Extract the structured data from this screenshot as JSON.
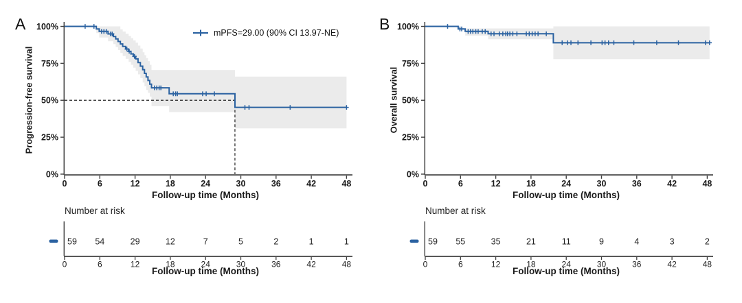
{
  "figure_type": "kaplan-meier-survival-figure",
  "colors": {
    "curve": "#2b62a1",
    "ci_fill": "#ebebeb",
    "axis_line": "#595959",
    "tick_line": "#3f3f3f",
    "text": "#1a1a1a",
    "median_dash": "#222222"
  },
  "chart_data": [
    {
      "type": "line",
      "subtype": "kaplan-meier-step",
      "panel_label": "A",
      "ylabel": "Progression-free survival",
      "xlabel": "Follow-up time (Months)",
      "xlim": [
        0,
        48
      ],
      "xticks": [
        0,
        6,
        12,
        18,
        24,
        30,
        36,
        42,
        48
      ],
      "ylim": [
        0,
        100
      ],
      "yticks": [
        0,
        25,
        50,
        75,
        100
      ],
      "ytick_labels": [
        "0%",
        "25%",
        "50%",
        "75%",
        "100%"
      ],
      "grid": false,
      "legend": {
        "label": "mPFS=29.00 (90% CI 13.97-NE)",
        "position": "top-right"
      },
      "median": {
        "x": 29,
        "y_pct": 50,
        "style": "dashed"
      },
      "steps_pct": [
        [
          0,
          100
        ],
        [
          5.4,
          98.3
        ],
        [
          5.9,
          96.6
        ],
        [
          7.4,
          94.9
        ],
        [
          8.3,
          93.2
        ],
        [
          8.7,
          91.5
        ],
        [
          9.1,
          89.8
        ],
        [
          9.5,
          88.1
        ],
        [
          9.9,
          86.4
        ],
        [
          10.4,
          84.7
        ],
        [
          10.9,
          83.1
        ],
        [
          11.3,
          81.4
        ],
        [
          11.7,
          79.7
        ],
        [
          12.1,
          78
        ],
        [
          12.5,
          75.5
        ],
        [
          12.9,
          73.1
        ],
        [
          13.3,
          70.7
        ],
        [
          13.6,
          68.2
        ],
        [
          13.9,
          65.8
        ],
        [
          14.2,
          63.4
        ],
        [
          14.5,
          60.9
        ],
        [
          14.8,
          58.4
        ],
        [
          17.8,
          54.4
        ],
        [
          29,
          45.2
        ],
        [
          48,
          45.2
        ]
      ],
      "censors_pct": [
        [
          3.5,
          100
        ],
        [
          5.0,
          100
        ],
        [
          6.3,
          96.6
        ],
        [
          6.7,
          96.6
        ],
        [
          7.1,
          96.6
        ],
        [
          7.8,
          94.9
        ],
        [
          8.1,
          94.9
        ],
        [
          10.6,
          84.7
        ],
        [
          11.0,
          83.1
        ],
        [
          11.9,
          79.7
        ],
        [
          15.3,
          58.4
        ],
        [
          15.7,
          58.4
        ],
        [
          16.1,
          58.4
        ],
        [
          16.4,
          58.4
        ],
        [
          18.5,
          54.4
        ],
        [
          18.9,
          54.4
        ],
        [
          19.2,
          54.4
        ],
        [
          23.5,
          54.4
        ],
        [
          24.1,
          54.4
        ],
        [
          25.5,
          54.4
        ],
        [
          30.7,
          45.2
        ],
        [
          31.4,
          45.2
        ],
        [
          38.4,
          45.2
        ],
        [
          48,
          45.2
        ]
      ],
      "ci_upper_pct": [
        [
          5.4,
          100
        ],
        [
          9.1,
          100
        ],
        [
          9.5,
          98
        ],
        [
          9.9,
          96.5
        ],
        [
          10.4,
          95
        ],
        [
          10.9,
          93.5
        ],
        [
          11.3,
          92
        ],
        [
          11.7,
          90.5
        ],
        [
          12.1,
          89
        ],
        [
          12.5,
          87
        ],
        [
          12.9,
          85
        ],
        [
          13.3,
          82.5
        ],
        [
          13.6,
          80.5
        ],
        [
          13.9,
          78.5
        ],
        [
          14.2,
          76.5
        ],
        [
          14.5,
          74
        ],
        [
          14.8,
          70.5
        ],
        [
          29,
          66
        ],
        [
          48,
          66
        ]
      ],
      "ci_lower_pct": [
        [
          5.4,
          95.5
        ],
        [
          5.9,
          92.5
        ],
        [
          7.4,
          90
        ],
        [
          8.3,
          88
        ],
        [
          8.7,
          86
        ],
        [
          9.1,
          84
        ],
        [
          9.5,
          82
        ],
        [
          9.9,
          80
        ],
        [
          10.4,
          78
        ],
        [
          10.9,
          76
        ],
        [
          11.3,
          74
        ],
        [
          11.7,
          72
        ],
        [
          12.1,
          70
        ],
        [
          12.5,
          67.5
        ],
        [
          12.9,
          65
        ],
        [
          13.3,
          62
        ],
        [
          13.6,
          59.5
        ],
        [
          13.9,
          57
        ],
        [
          14.2,
          55
        ],
        [
          14.5,
          52.5
        ],
        [
          14.8,
          46
        ],
        [
          17.8,
          42
        ],
        [
          29,
          31
        ],
        [
          48,
          31
        ]
      ],
      "risk_table": {
        "title": "Number at risk",
        "times": [
          0,
          6,
          12,
          18,
          24,
          30,
          36,
          42,
          48
        ],
        "counts": [
          59,
          54,
          29,
          12,
          7,
          5,
          2,
          1,
          1
        ]
      }
    },
    {
      "type": "line",
      "subtype": "kaplan-meier-step",
      "panel_label": "B",
      "ylabel": "Overall survival",
      "xlabel": "Follow-up time (Months)",
      "xlim": [
        0,
        48
      ],
      "xticks": [
        0,
        6,
        12,
        18,
        24,
        30,
        36,
        42,
        48
      ],
      "ylim": [
        0,
        100
      ],
      "yticks": [
        0,
        25,
        50,
        75,
        100
      ],
      "ytick_labels": [
        "0%",
        "25%",
        "50%",
        "75%",
        "100%"
      ],
      "grid": false,
      "steps_pct": [
        [
          0,
          100
        ],
        [
          5.6,
          98.3
        ],
        [
          6.8,
          96.6
        ],
        [
          10.7,
          95
        ],
        [
          21.8,
          88.9
        ],
        [
          48.4,
          88.9
        ]
      ],
      "censors_pct": [
        [
          3.8,
          100
        ],
        [
          5.9,
          98.3
        ],
        [
          6.2,
          98.3
        ],
        [
          7.3,
          96.6
        ],
        [
          7.7,
          96.6
        ],
        [
          8.1,
          96.6
        ],
        [
          8.6,
          96.6
        ],
        [
          9.0,
          96.6
        ],
        [
          9.7,
          96.6
        ],
        [
          10.2,
          96.6
        ],
        [
          11.2,
          95
        ],
        [
          11.7,
          95
        ],
        [
          12.6,
          95
        ],
        [
          13.2,
          95
        ],
        [
          13.7,
          95
        ],
        [
          14.0,
          95
        ],
        [
          14.4,
          95
        ],
        [
          14.9,
          95
        ],
        [
          15.6,
          95
        ],
        [
          17.2,
          95
        ],
        [
          17.7,
          95
        ],
        [
          18.2,
          95
        ],
        [
          18.7,
          95
        ],
        [
          19.2,
          95
        ],
        [
          20.6,
          95
        ],
        [
          23.3,
          88.9
        ],
        [
          24.2,
          88.9
        ],
        [
          24.8,
          88.9
        ],
        [
          26.0,
          88.9
        ],
        [
          28.2,
          88.9
        ],
        [
          30.1,
          88.9
        ],
        [
          30.6,
          88.9
        ],
        [
          31.2,
          88.9
        ],
        [
          32.1,
          88.9
        ],
        [
          35.5,
          88.9
        ],
        [
          39.4,
          88.9
        ],
        [
          43.1,
          88.9
        ],
        [
          47.7,
          88.9
        ],
        [
          48.4,
          88.9
        ]
      ],
      "ci_upper_pct": [
        [
          6.8,
          98.6
        ],
        [
          10.7,
          98.6
        ],
        [
          21.8,
          100
        ],
        [
          48.4,
          100
        ]
      ],
      "ci_lower_pct": [
        [
          6.8,
          93.8
        ],
        [
          10.7,
          91.3
        ],
        [
          21.8,
          77.8
        ],
        [
          48.4,
          77.8
        ]
      ],
      "risk_table": {
        "title": "Number at risk",
        "times": [
          0,
          6,
          12,
          18,
          24,
          30,
          36,
          42,
          48
        ],
        "counts": [
          59,
          55,
          35,
          21,
          11,
          9,
          4,
          3,
          2
        ]
      }
    }
  ]
}
